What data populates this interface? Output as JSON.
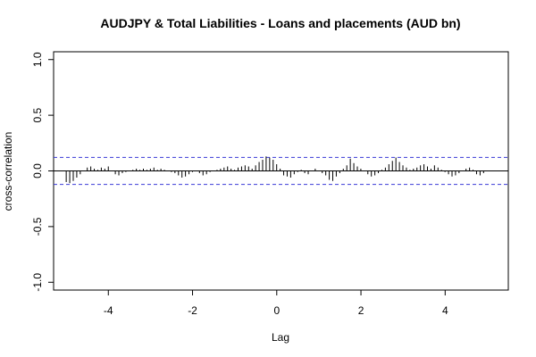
{
  "chart_data": {
    "type": "bar",
    "title": "AUDJPY & Total Liabilities - Loans and placements (AUD bn)",
    "xlabel": "Lag",
    "ylabel": "cross-correlation",
    "xlim": [
      -5.3,
      5.5
    ],
    "ylim": [
      -1.07,
      1.07
    ],
    "x_ticks": [
      -4,
      -2,
      0,
      2,
      4
    ],
    "x_tick_labels": [
      "-4",
      "-2",
      "0",
      "2",
      "4"
    ],
    "y_ticks": [
      -1.0,
      -0.5,
      0.0,
      0.5,
      1.0
    ],
    "y_tick_labels": [
      "-1.0",
      "-0.5",
      "0.0",
      "0.5",
      "1.0"
    ],
    "confidence_bounds": [
      0.121,
      -0.121
    ],
    "confidence_color": "#3a3ad6",
    "lag_step": 0.0833,
    "lag_start": -5.0,
    "values": [
      -0.1,
      -0.11,
      -0.09,
      -0.06,
      -0.03,
      0.0,
      0.03,
      0.04,
      0.02,
      0.01,
      0.03,
      0.02,
      0.04,
      0.0,
      -0.03,
      -0.04,
      -0.02,
      -0.01,
      0.0,
      0.01,
      0.02,
      0.01,
      0.02,
      0.01,
      0.02,
      0.03,
      0.01,
      0.02,
      0.01,
      0.0,
      -0.01,
      -0.02,
      -0.04,
      -0.06,
      -0.05,
      -0.03,
      -0.01,
      0.0,
      -0.02,
      -0.04,
      -0.03,
      -0.01,
      0.0,
      0.01,
      0.02,
      0.03,
      0.04,
      0.02,
      0.01,
      0.03,
      0.04,
      0.05,
      0.04,
      0.02,
      0.05,
      0.08,
      0.1,
      0.13,
      0.12,
      0.1,
      0.06,
      0.02,
      -0.04,
      -0.05,
      -0.06,
      -0.03,
      -0.01,
      0.01,
      -0.02,
      -0.03,
      0.0,
      0.02,
      0.0,
      -0.02,
      -0.04,
      -0.08,
      -0.09,
      -0.05,
      -0.02,
      0.02,
      0.05,
      0.11,
      0.07,
      0.04,
      0.02,
      0.0,
      -0.03,
      -0.05,
      -0.04,
      -0.02,
      0.01,
      0.03,
      0.06,
      0.09,
      0.12,
      0.08,
      0.05,
      0.03,
      0.01,
      0.02,
      0.03,
      0.05,
      0.06,
      0.04,
      0.02,
      0.05,
      0.03,
      0.01,
      -0.01,
      -0.03,
      -0.05,
      -0.04,
      -0.02,
      0.0,
      0.02,
      0.03,
      0.01,
      -0.03,
      -0.04,
      -0.02,
      0.0
    ]
  }
}
